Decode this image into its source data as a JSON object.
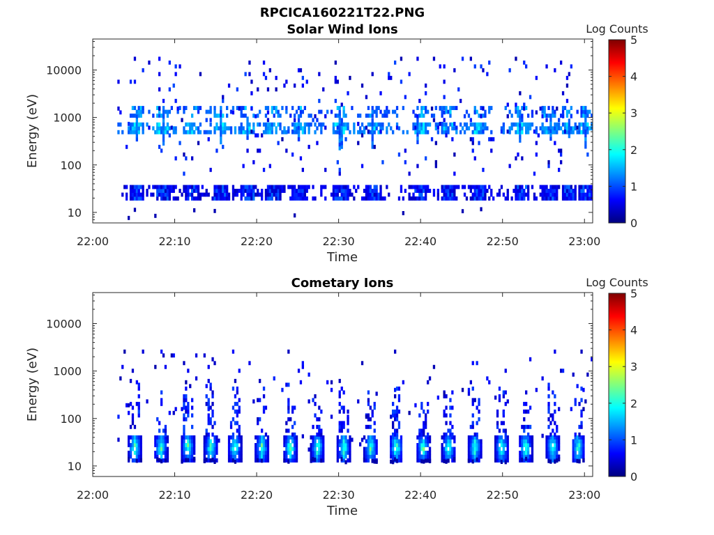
{
  "figure": {
    "title": "RPCICA160221T22.PNG"
  },
  "chart_data": [
    {
      "type": "heatmap",
      "title": "Solar Wind Ions",
      "xlabel": "Time",
      "ylabel": "Energy (eV)",
      "x_range": [
        "22:00",
        "23:01"
      ],
      "x_ticks": [
        "22:00",
        "22:10",
        "22:20",
        "22:30",
        "22:40",
        "22:50",
        "23:00"
      ],
      "y_scale": "log",
      "y_range": [
        6,
        45000
      ],
      "y_ticks": [
        "10",
        "100",
        "1000",
        "10000"
      ],
      "y_tick_values": [
        10,
        100,
        1000,
        10000
      ],
      "colorbar": {
        "label": "Log Counts",
        "range": [
          0,
          5
        ],
        "ticks": [
          "0",
          "1",
          "2",
          "3",
          "4",
          "5"
        ],
        "colormap": "jet"
      },
      "features": {
        "start_minute": 3,
        "end_minute": 61,
        "main_bands": [
          {
            "energy_min": 18,
            "energy_max": 35,
            "log_counts": 0.3,
            "density": 0.55
          },
          {
            "energy_min": 450,
            "energy_max": 750,
            "log_counts": 1.0,
            "density": 0.45
          },
          {
            "energy_min": 1000,
            "energy_max": 1500,
            "log_counts": 0.8,
            "density": 0.3
          }
        ],
        "bursts_minutes": [
          5.2,
          8.4,
          12.0,
          15.4,
          18.8,
          21.9,
          25.0,
          30.1,
          34.2,
          39.8,
          43.3,
          47.0,
          52.3,
          55.6,
          58.0,
          60.0
        ],
        "scatter_energy_range": [
          60,
          16000
        ],
        "scatter_density": 0.03
      }
    },
    {
      "type": "heatmap",
      "title": "Cometary Ions",
      "xlabel": "Time",
      "ylabel": "Energy (eV)",
      "x_range": [
        "22:00",
        "23:01"
      ],
      "x_ticks": [
        "22:00",
        "22:10",
        "22:20",
        "22:30",
        "22:40",
        "22:50",
        "23:00"
      ],
      "y_scale": "log",
      "y_range": [
        6,
        45000
      ],
      "y_ticks": [
        "10",
        "100",
        "1000",
        "10000"
      ],
      "y_tick_values": [
        10,
        100,
        1000,
        10000
      ],
      "colorbar": {
        "label": "Log Counts",
        "range": [
          0,
          5
        ],
        "ticks": [
          "0",
          "1",
          "2",
          "3",
          "4",
          "5"
        ],
        "colormap": "jet"
      },
      "features": {
        "start_minute": 3,
        "end_minute": 61,
        "burst_period_minutes": 3.2,
        "bursts_minutes": [
          5.0,
          8.2,
          11.5,
          14.3,
          17.2,
          20.5,
          24.0,
          27.3,
          30.5,
          33.8,
          36.9,
          40.2,
          43.3,
          46.5,
          49.8,
          52.7,
          56.0,
          59.1
        ],
        "burst_band": {
          "energy_min": 12,
          "energy_max": 42,
          "peak_log_counts": 2.3
        },
        "plume_energy_max": 700,
        "scatter_energy_range": [
          100,
          2600
        ],
        "scatter_density": 0.02
      }
    }
  ]
}
